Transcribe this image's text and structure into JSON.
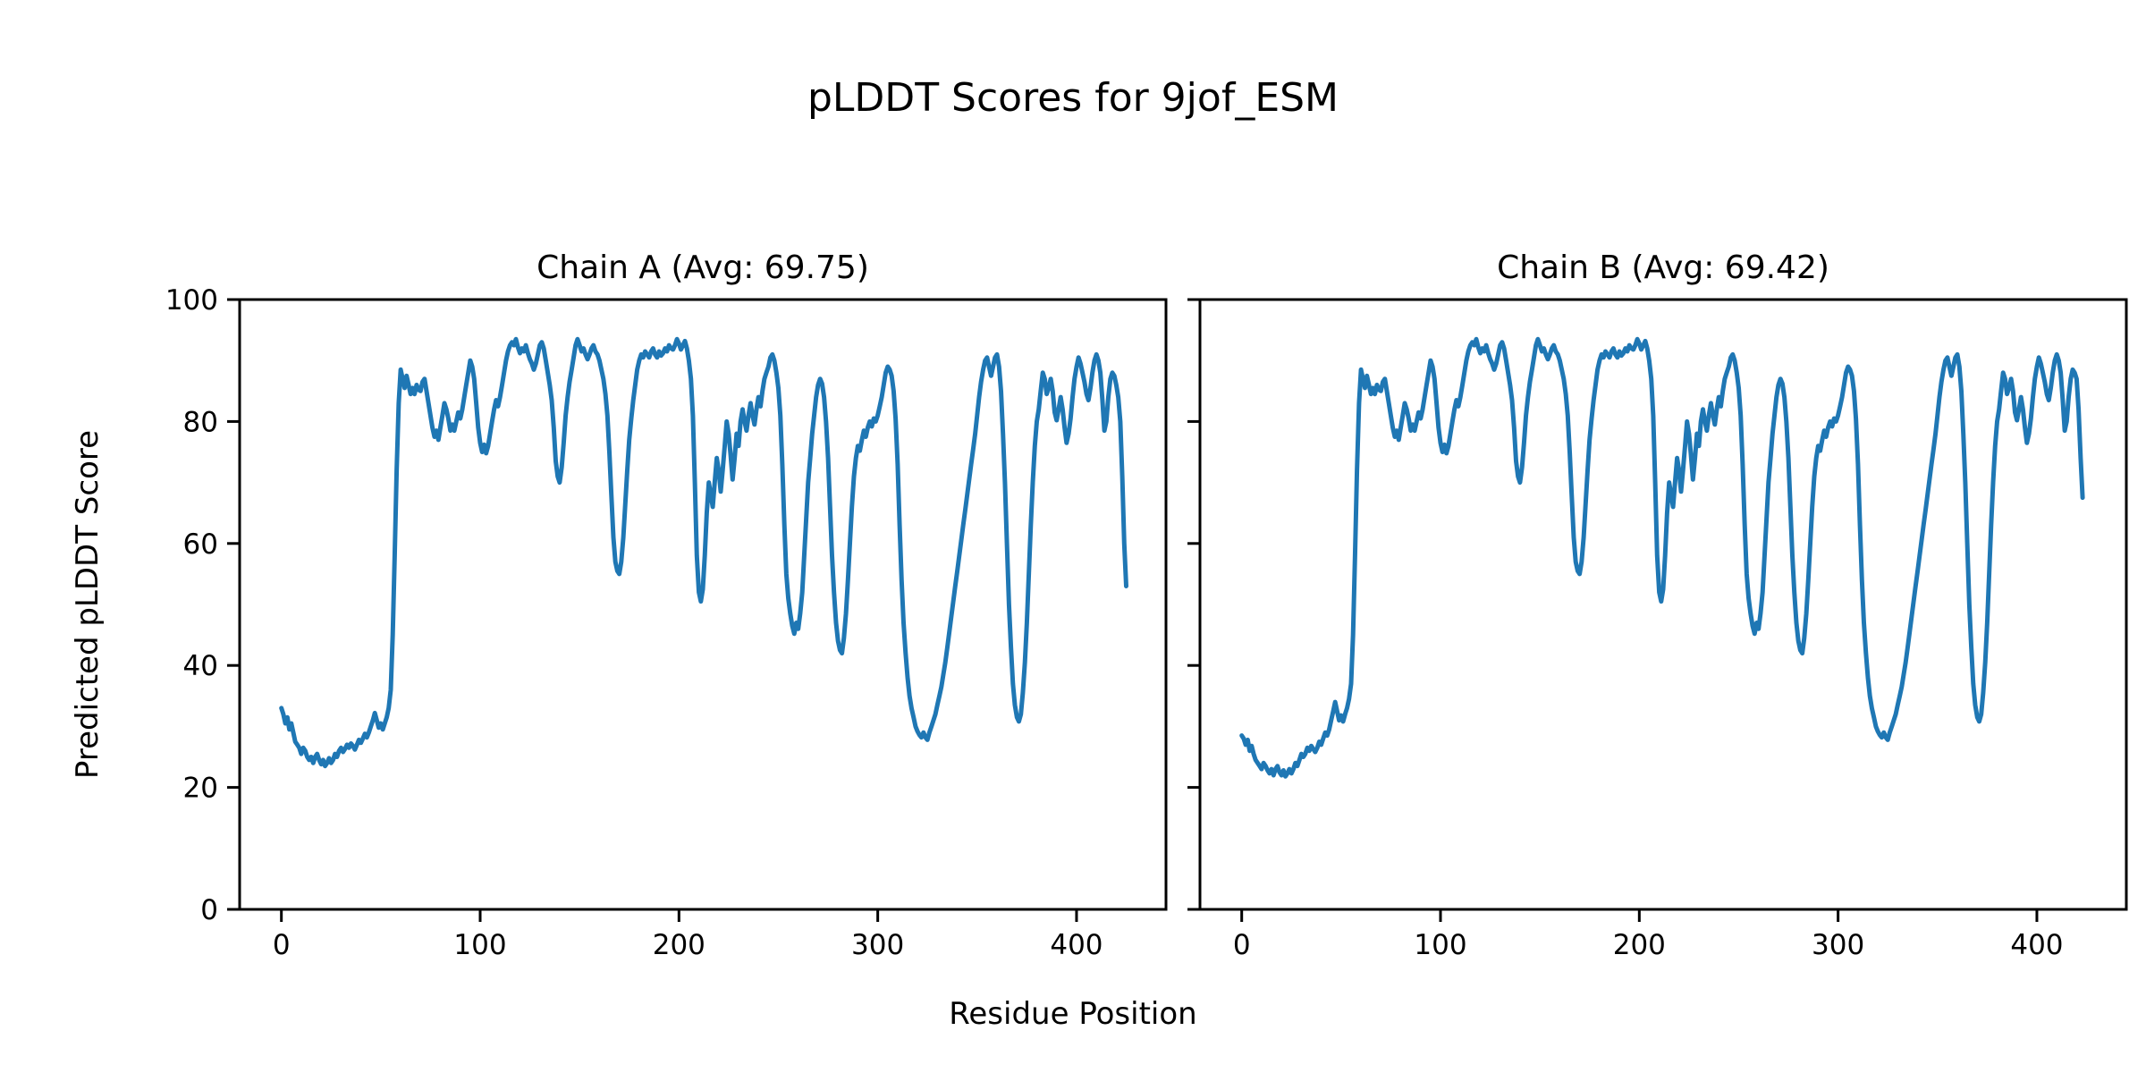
{
  "figure": {
    "title": "pLDDT Scores for 9jof_ESM",
    "xlabel": "Residue Position",
    "ylabel": "Predicted pLDDT Score",
    "background_color": "#ffffff",
    "text_color": "#000000",
    "line_color": "#1f77b4"
  },
  "chart_data": [
    {
      "type": "line",
      "title": "Chain A (Avg: 69.75)",
      "chain": "A",
      "average_plddt": 69.75,
      "xlim": [
        -21,
        445
      ],
      "ylim": [
        0,
        100
      ],
      "xticks": [
        0,
        100,
        200,
        300,
        400
      ],
      "yticks": [
        0,
        20,
        40,
        60,
        80,
        100
      ],
      "show_ytick_labels": true,
      "grid": false,
      "legend": null,
      "series": [
        {
          "name": "pLDDT",
          "color": "#1f77b4",
          "x_start": 0,
          "x_step": 1,
          "values": [
            33,
            32,
            30.5,
            31.5,
            29.5,
            30.5,
            29,
            27.5,
            27,
            26.5,
            25.5,
            26.5,
            26,
            25,
            24.5,
            25,
            24,
            25,
            25.5,
            24.5,
            23.8,
            24.5,
            23.5,
            24,
            24.8,
            24,
            24.5,
            25.5,
            25,
            26,
            26.5,
            25.8,
            26.3,
            27,
            26.5,
            27.2,
            26.8,
            26.2,
            27,
            27.8,
            27.3,
            28,
            28.8,
            28.2,
            29,
            30,
            31,
            32.2,
            31,
            29.8,
            30.5,
            29.5,
            30.5,
            31.5,
            33,
            36,
            45,
            58,
            72,
            83,
            88.5,
            87,
            85.5,
            87.5,
            86,
            84.5,
            85.5,
            84.5,
            86,
            85.2,
            85,
            86.5,
            87,
            85,
            83,
            81,
            79,
            77.5,
            78.5,
            77,
            79,
            81,
            83,
            82,
            80.5,
            78.5,
            79.5,
            78.5,
            80,
            81.5,
            80.5,
            82,
            84,
            86,
            88,
            90,
            89,
            87,
            83,
            79,
            76.5,
            75,
            76.2,
            74.8,
            76,
            78,
            80,
            82,
            83.5,
            82.5,
            84,
            86,
            88,
            90,
            91.5,
            92.5,
            93,
            92.5,
            93.5,
            92.2,
            91.2,
            92,
            91.5,
            92.5,
            91.2,
            90.2,
            89.5,
            88.5,
            89.5,
            91,
            92.5,
            93,
            92,
            90,
            88,
            86,
            83.5,
            79,
            73.5,
            71,
            70,
            72.5,
            76.5,
            81,
            84,
            86.5,
            88.5,
            90.5,
            92.5,
            93.5,
            92.5,
            91.5,
            92,
            91,
            90.2,
            91,
            92,
            92.5,
            91.5,
            91,
            90,
            88.5,
            87,
            84.5,
            81,
            75,
            68,
            61,
            57,
            55.5,
            55,
            57,
            61,
            66.5,
            72,
            77,
            80.5,
            83.5,
            86,
            88.5,
            90,
            91,
            90.5,
            91.5,
            91,
            90.5,
            91.5,
            92,
            91,
            90.5,
            91.5,
            90.8,
            91.2,
            92,
            91.5,
            92.5,
            92,
            91.8,
            92.5,
            93.5,
            92.8,
            91.8,
            92.5,
            93.2,
            92,
            90,
            87,
            81,
            70,
            58,
            52,
            50.5,
            52.5,
            58,
            65,
            70,
            68,
            66,
            70,
            74,
            72,
            68.5,
            72,
            76,
            80,
            78,
            74.5,
            70.5,
            74,
            78,
            76,
            80,
            82,
            80,
            78.5,
            81,
            83,
            81,
            79.5,
            82,
            84,
            82.5,
            85,
            87,
            88,
            89,
            90.5,
            91,
            90,
            88,
            85.5,
            81,
            73,
            63,
            55,
            51,
            48.5,
            46.5,
            45.2,
            47,
            46,
            48.5,
            52,
            58,
            64,
            70,
            74,
            78,
            81,
            84,
            86,
            87,
            86.2,
            84,
            80,
            74,
            66,
            58,
            52,
            47,
            44,
            42.5,
            42,
            44.5,
            48.5,
            54,
            60,
            66,
            71,
            74,
            76,
            75.2,
            77,
            78.5,
            77.5,
            79,
            80,
            79.2,
            80.5,
            80,
            81,
            82.5,
            84,
            86,
            88,
            89,
            88.5,
            87.5,
            85,
            80.5,
            73,
            63,
            54,
            47,
            42,
            38,
            35,
            33,
            31.5,
            30,
            29.2,
            28.6,
            28.2,
            29,
            28.2,
            27.8,
            29,
            30,
            31,
            32,
            33.5,
            35,
            36.5,
            38.5,
            40.5,
            43,
            45.5,
            48,
            50.5,
            53,
            55.5,
            58,
            60.5,
            63,
            65.5,
            68,
            70.5,
            73,
            75.5,
            78,
            81,
            84,
            86.5,
            88.5,
            90,
            90.5,
            89,
            87.5,
            89,
            90.5,
            91,
            89,
            85,
            78,
            70,
            60,
            50,
            43,
            37,
            33.5,
            31.5,
            30.8,
            32,
            35.5,
            40.5,
            47,
            55,
            63,
            70,
            76,
            80,
            82,
            85,
            88,
            87,
            84.5,
            85.5,
            87,
            85,
            81.5,
            80.2,
            82,
            84,
            82,
            79,
            76.5,
            78,
            80.5,
            84,
            87,
            89,
            90.5,
            89.5,
            88,
            86.5,
            84.5,
            83.5,
            85.5,
            88,
            90,
            91,
            90,
            88,
            83.5,
            78.5,
            80,
            84,
            87,
            88,
            87.5,
            86,
            84,
            80,
            71,
            60,
            53
          ]
        }
      ]
    },
    {
      "type": "line",
      "title": "Chain B (Avg: 69.42)",
      "chain": "B",
      "average_plddt": 69.42,
      "xlim": [
        -21,
        445
      ],
      "ylim": [
        0,
        100
      ],
      "xticks": [
        0,
        100,
        200,
        300,
        400
      ],
      "yticks": [
        0,
        20,
        40,
        60,
        80,
        100
      ],
      "show_ytick_labels": false,
      "grid": false,
      "legend": null,
      "series": [
        {
          "name": "pLDDT",
          "color": "#1f77b4",
          "x_start": 0,
          "x_step": 1,
          "values": [
            28.5,
            28,
            27,
            27.8,
            26,
            26.8,
            25.5,
            24.5,
            24,
            23.5,
            23,
            24,
            23.5,
            22.8,
            22.3,
            23,
            22,
            23,
            23.5,
            22.5,
            22,
            22.8,
            21.8,
            22.3,
            23,
            22.3,
            23,
            24,
            23.5,
            24.5,
            25.5,
            25,
            25.5,
            26.5,
            26,
            26.8,
            26.3,
            25.8,
            26.5,
            27.5,
            27,
            28,
            29,
            28.5,
            29.5,
            31,
            32.5,
            34,
            32.5,
            31,
            31.8,
            30.8,
            32,
            33,
            34.5,
            37,
            45,
            58,
            72,
            83,
            88.5,
            87,
            85.5,
            87.5,
            86,
            84.5,
            85.5,
            84.5,
            86,
            85.2,
            85,
            86.5,
            87,
            85,
            83,
            81,
            79,
            77.5,
            78.5,
            77,
            79,
            81,
            83,
            82,
            80.5,
            78.5,
            79.5,
            78.5,
            80,
            81.5,
            80.5,
            82,
            84,
            86,
            88,
            90,
            89,
            87,
            83,
            79,
            76.5,
            75,
            76.2,
            74.8,
            76,
            78,
            80,
            82,
            83.5,
            82.5,
            84,
            86,
            88,
            90,
            91.5,
            92.5,
            93,
            92.5,
            93.5,
            92.2,
            91.2,
            92,
            91.5,
            92.5,
            91.2,
            90.2,
            89.5,
            88.5,
            89.5,
            91,
            92.5,
            93,
            92,
            90,
            88,
            86,
            83.5,
            79,
            73.5,
            71,
            70,
            72.5,
            76.5,
            81,
            84,
            86.5,
            88.5,
            90.5,
            92.5,
            93.5,
            92.5,
            91.5,
            92,
            91,
            90.2,
            91,
            92,
            92.5,
            91.5,
            91,
            90,
            88.5,
            87,
            84.5,
            81,
            75,
            68,
            61,
            57,
            55.5,
            55,
            57,
            61,
            66.5,
            72,
            77,
            80.5,
            83.5,
            86,
            88.5,
            90,
            91,
            90.5,
            91.5,
            91,
            90.5,
            91.5,
            92,
            91,
            90.5,
            91.5,
            90.8,
            91.2,
            92,
            91.5,
            92.5,
            92,
            91.8,
            92.5,
            93.5,
            92.8,
            91.8,
            92.5,
            93.2,
            92,
            90,
            87,
            81,
            70,
            58,
            52,
            50.5,
            52.5,
            58,
            65,
            70,
            68,
            66,
            70,
            74,
            72,
            68.5,
            72,
            76,
            80,
            78,
            74.5,
            70.5,
            74,
            78,
            76,
            80,
            82,
            80,
            78.5,
            81,
            83,
            81,
            79.5,
            82,
            84,
            82.5,
            85,
            87,
            88,
            89,
            90.5,
            91,
            90,
            88,
            85.5,
            81,
            73,
            63,
            55,
            51,
            48.5,
            46.5,
            45.2,
            47,
            46,
            48.5,
            52,
            58,
            64,
            70,
            74,
            78,
            81,
            84,
            86,
            87,
            86.2,
            84,
            80,
            74,
            66,
            58,
            52,
            47,
            44,
            42.5,
            42,
            44.5,
            48.5,
            54,
            60,
            66,
            71,
            74,
            76,
            75.2,
            77,
            78.5,
            77.5,
            79,
            80,
            79.2,
            80.5,
            80,
            81,
            82.5,
            84,
            86,
            88,
            89,
            88.5,
            87.5,
            85,
            80.5,
            73,
            63,
            54,
            47,
            42,
            38,
            35,
            33,
            31.5,
            30,
            29.2,
            28.6,
            28.2,
            29,
            28.2,
            27.8,
            29,
            30,
            31,
            32,
            33.5,
            35,
            36.5,
            38.5,
            40.5,
            43,
            45.5,
            48,
            50.5,
            53,
            55.5,
            58,
            60.5,
            63,
            65.5,
            68,
            70.5,
            73,
            75.5,
            78,
            81,
            84,
            86.5,
            88.5,
            90,
            90.5,
            89,
            87.5,
            89,
            90.5,
            91,
            89,
            85,
            78,
            70,
            60,
            50,
            43,
            37,
            33.5,
            31.5,
            30.8,
            32,
            35.5,
            40.5,
            47,
            55,
            63,
            70,
            76,
            80,
            82,
            85,
            88,
            87,
            84.5,
            85.5,
            87,
            85,
            81.5,
            80.2,
            82,
            84,
            82,
            79,
            76.5,
            78,
            80.5,
            84,
            87,
            89,
            90.5,
            89.5,
            88,
            86.5,
            84.5,
            83.5,
            85.5,
            88,
            90,
            91,
            90,
            88,
            83.5,
            78.5,
            80,
            84,
            87,
            88.5,
            88,
            87,
            82,
            74,
            67.5
          ]
        }
      ]
    }
  ]
}
